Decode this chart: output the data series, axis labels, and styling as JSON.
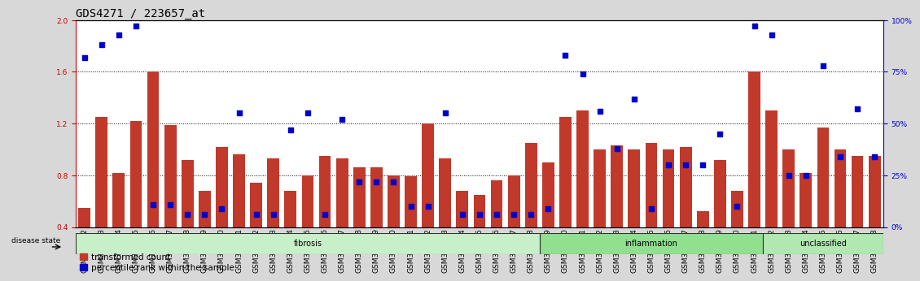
{
  "title": "GDS4271 / 223657_at",
  "samples": [
    "GSM380382",
    "GSM380383",
    "GSM380384",
    "GSM380385",
    "GSM380386",
    "GSM380387",
    "GSM380388",
    "GSM380389",
    "GSM380390",
    "GSM380391",
    "GSM380392",
    "GSM380393",
    "GSM380394",
    "GSM380395",
    "GSM380396",
    "GSM380397",
    "GSM380398",
    "GSM380399",
    "GSM380400",
    "GSM380401",
    "GSM380402",
    "GSM380403",
    "GSM380404",
    "GSM380405",
    "GSM380406",
    "GSM380407",
    "GSM380408",
    "GSM380409",
    "GSM380410",
    "GSM380411",
    "GSM380412",
    "GSM380413",
    "GSM380414",
    "GSM380415",
    "GSM380416",
    "GSM380417",
    "GSM380418",
    "GSM380419",
    "GSM380420",
    "GSM380421",
    "GSM380422",
    "GSM380423",
    "GSM380424",
    "GSM380425",
    "GSM380426",
    "GSM380427",
    "GSM380428"
  ],
  "bar_values": [
    0.55,
    1.25,
    0.82,
    1.22,
    1.6,
    1.19,
    0.92,
    0.68,
    1.02,
    0.96,
    0.74,
    0.93,
    0.68,
    0.8,
    0.95,
    0.93,
    0.86,
    0.86,
    0.8,
    0.79,
    1.2,
    0.93,
    0.68,
    0.65,
    0.76,
    0.8,
    1.05,
    0.9,
    1.25,
    1.3,
    1.0,
    1.03,
    1.0,
    1.05,
    1.0,
    1.02,
    0.52,
    0.92,
    0.68,
    1.6,
    1.3,
    1.0,
    0.82,
    1.17,
    1.0,
    0.95,
    0.95
  ],
  "dot_values_pct": [
    82,
    88,
    93,
    97,
    11,
    11,
    6,
    6,
    9,
    55,
    6,
    6,
    47,
    55,
    6,
    52,
    22,
    22,
    22,
    10,
    10,
    55,
    6,
    6,
    6,
    6,
    6,
    9,
    83,
    74,
    56,
    38,
    62,
    9,
    30,
    30,
    30,
    45,
    10,
    97,
    93,
    25,
    25,
    78,
    34,
    57,
    34
  ],
  "groups": [
    {
      "label": "fibrosis",
      "start": 0,
      "end": 27,
      "color": "#c8f0c8"
    },
    {
      "label": "inflammation",
      "start": 27,
      "end": 40,
      "color": "#90e090"
    },
    {
      "label": "unclassified",
      "start": 40,
      "end": 47,
      "color": "#b0e8b0"
    }
  ],
  "ylim_left": [
    0.4,
    2.0
  ],
  "yticks_left": [
    0.4,
    0.8,
    1.2,
    1.6,
    2.0
  ],
  "yticks_right": [
    0,
    25,
    50,
    75,
    100
  ],
  "bar_color": "#c0392b",
  "dot_color": "#0000cc",
  "background_color": "#d8d8d8",
  "plot_bg_color": "#ffffff",
  "title_fontsize": 10,
  "tick_fontsize": 6.5,
  "label_fontsize": 8
}
